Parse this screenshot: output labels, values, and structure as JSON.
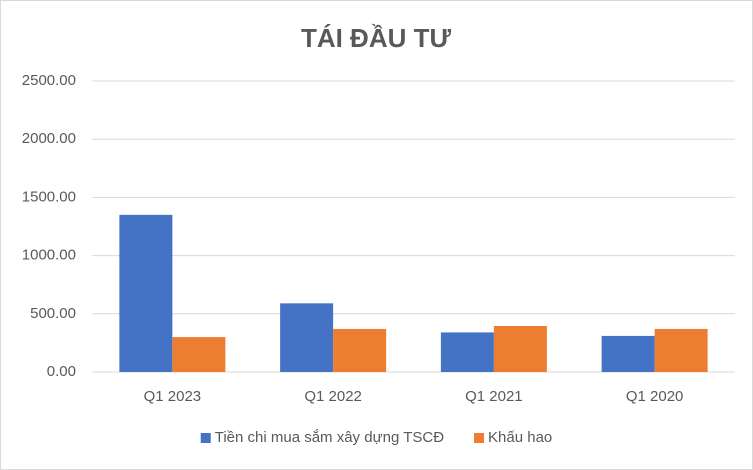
{
  "chart_data": {
    "type": "bar",
    "title": "TÁI ĐẦU TƯ",
    "categories": [
      "Q1 2023",
      "Q1 2022",
      "Q1 2021",
      "Q1 2020"
    ],
    "series": [
      {
        "name": "Tiền chi mua sắm xây dựng TSCĐ",
        "color": "#4472c4",
        "values": [
          1350,
          590,
          340,
          310
        ]
      },
      {
        "name": "Khấu hao",
        "color": "#ed7d31",
        "values": [
          300,
          370,
          395,
          370
        ]
      }
    ],
    "ylim": [
      0,
      2500
    ],
    "yticks": [
      {
        "value": 0,
        "label": "0.00"
      },
      {
        "value": 500,
        "label": "500.00"
      },
      {
        "value": 1000,
        "label": "1000.00"
      },
      {
        "value": 1500,
        "label": "1500.00"
      },
      {
        "value": 2000,
        "label": "2000.00"
      },
      {
        "value": 2500,
        "label": "2500.00"
      }
    ],
    "grid": true,
    "legend": "bottom"
  }
}
